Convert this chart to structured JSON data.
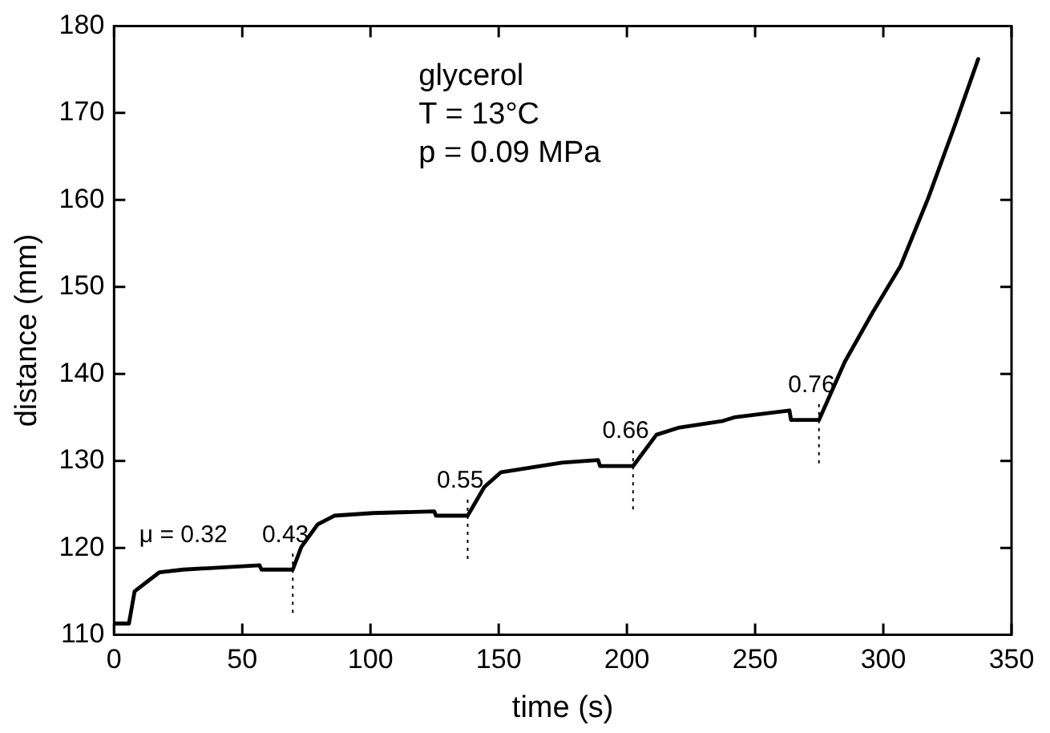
{
  "chart_data": {
    "type": "line",
    "xlabel": "time (s)",
    "ylabel": "distance (mm)",
    "xlim": [
      0,
      350
    ],
    "xticks": [
      0,
      50,
      100,
      150,
      200,
      250,
      300,
      350
    ],
    "ylim": [
      110,
      180
    ],
    "yticks": [
      110,
      120,
      130,
      140,
      150,
      160,
      170,
      180
    ],
    "grid": false,
    "legend": false,
    "marker": "none",
    "line_style": "solid",
    "series": [
      {
        "color": "#000000",
        "x": [
          0.6,
          5.8,
          8,
          17.7,
          27,
          56.7,
          57.5,
          69.7,
          73,
          79.4,
          85.9,
          101,
          124.9,
          125.5,
          137.9,
          144.4,
          150.9,
          174.7,
          188.8,
          189.5,
          202.4,
          211.5,
          220,
          237.5,
          241.8,
          263.4,
          264,
          274.9,
          285,
          295.9,
          306.7,
          317.5,
          328.4,
          337
        ],
        "values": [
          111.3,
          111.3,
          115.0,
          117.2,
          117.5,
          118.0,
          117.5,
          117.5,
          120.1,
          122.7,
          123.7,
          124.0,
          124.2,
          123.7,
          123.7,
          127.0,
          128.7,
          129.8,
          130.1,
          129.4,
          129.4,
          133.0,
          133.8,
          134.6,
          135.0,
          135.8,
          134.7,
          134.7,
          141.4,
          147.1,
          152.4,
          160.2,
          169.0,
          176.2
        ]
      }
    ],
    "ref_lines": [
      {
        "axis": "x",
        "value": 69.7,
        "line_style": "dotted",
        "color": "#000000"
      },
      {
        "axis": "x",
        "value": 137.9,
        "line_style": "dotted",
        "color": "#000000"
      },
      {
        "axis": "x",
        "value": 202.4,
        "line_style": "dotted",
        "color": "#000000"
      },
      {
        "axis": "x",
        "value": 274.9,
        "line_style": "dotted",
        "color": "#000000"
      }
    ],
    "annotations": [
      "glycerol",
      "T = 13°C",
      "p = 0.09 MPa",
      {
        "text": "μ = 0.32",
        "x": 27,
        "y": 117.5
      },
      {
        "text": "0.43",
        "x": 69.7,
        "y": 117.5
      },
      {
        "text": "0.55",
        "x": 137.9,
        "y": 123.7
      },
      {
        "text": "0.66",
        "x": 202.4,
        "y": 129.4
      },
      {
        "text": "0.76",
        "x": 274.9,
        "y": 134.7
      }
    ]
  }
}
